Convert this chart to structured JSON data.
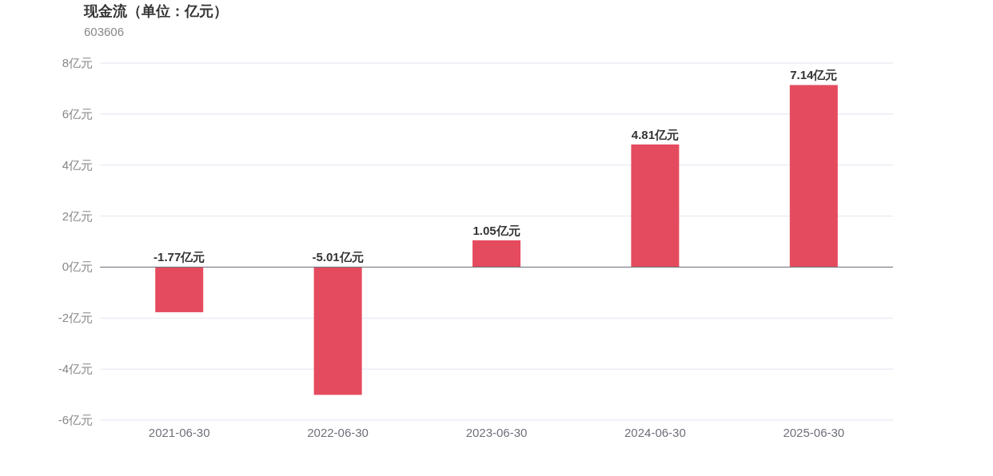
{
  "chart_data": {
    "type": "bar",
    "title": "现金流（单位：亿元）",
    "subtitle": "603606",
    "categories": [
      "2021-06-30",
      "2022-06-30",
      "2023-06-30",
      "2024-06-30",
      "2025-06-30"
    ],
    "values": [
      -1.77,
      -5.01,
      1.05,
      4.81,
      7.14
    ],
    "color": "#e54b5e",
    "value_labels": [
      "-1.77亿元",
      "-5.01亿元",
      "1.05亿元",
      "4.81亿元",
      "7.14亿元"
    ],
    "ylim": [
      -6,
      8
    ],
    "yticks": [
      {
        "value": -6,
        "label": "-6亿元"
      },
      {
        "value": -4,
        "label": "-4亿元"
      },
      {
        "value": -2,
        "label": "-2亿元"
      },
      {
        "value": 0,
        "label": "0亿元"
      },
      {
        "value": 2,
        "label": "2亿元"
      },
      {
        "value": 4,
        "label": "4亿元"
      },
      {
        "value": 6,
        "label": "6亿元"
      },
      {
        "value": 8,
        "label": "8亿元"
      }
    ],
    "grid": "y"
  }
}
